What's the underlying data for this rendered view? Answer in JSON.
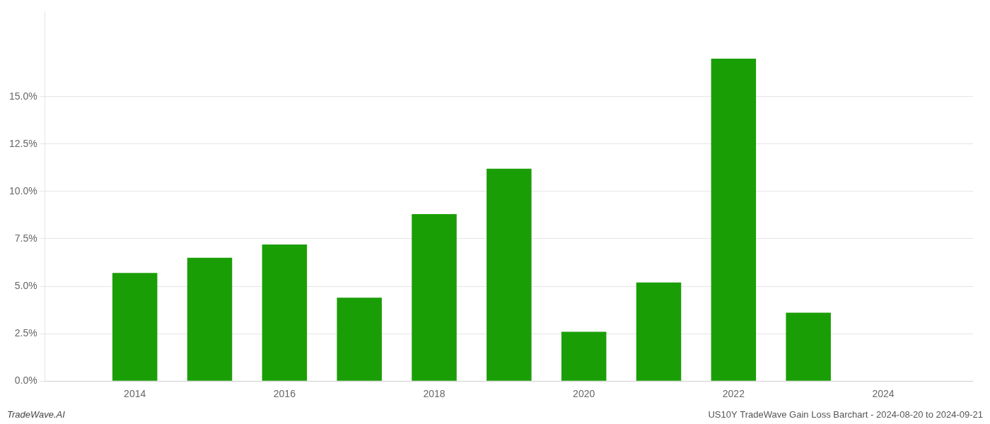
{
  "chart_data": {
    "type": "bar",
    "x": [
      2014,
      2015,
      2016,
      2017,
      2018,
      2019,
      2020,
      2021,
      2022,
      2023
    ],
    "values": [
      0.057,
      0.065,
      0.072,
      0.044,
      0.088,
      0.112,
      0.026,
      0.052,
      0.17,
      0.036
    ],
    "color": "#1a9e06",
    "xlim": [
      2012.8,
      2025.2
    ],
    "xticks": [
      2014,
      2016,
      2018,
      2020,
      2022,
      2024
    ],
    "ylim": [
      0,
      0.195
    ],
    "yticks": [
      {
        "value": 0.0,
        "label": "0.0%"
      },
      {
        "value": 0.025,
        "label": "2.5%"
      },
      {
        "value": 0.05,
        "label": "5.0%"
      },
      {
        "value": 0.075,
        "label": "7.5%"
      },
      {
        "value": 0.1,
        "label": "10.0%"
      },
      {
        "value": 0.125,
        "label": "12.5%"
      },
      {
        "value": 0.15,
        "label": "15.0%"
      }
    ],
    "grid": "y",
    "annotations": [
      "TradeWave.AI",
      "US10Y TradeWave Gain Loss Barchart - 2024-08-20 to 2024-09-21"
    ]
  }
}
